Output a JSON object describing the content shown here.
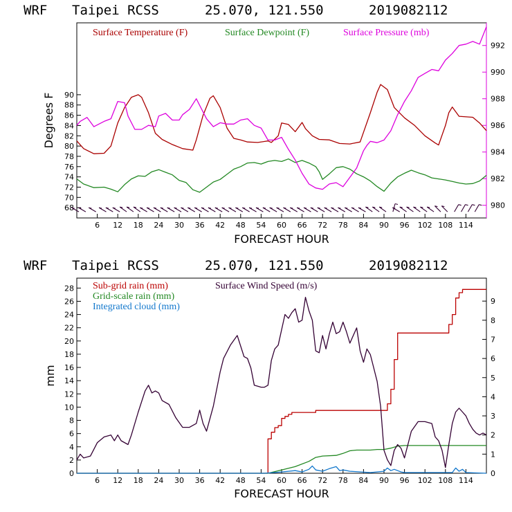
{
  "colors": {
    "temperature": "#aa0000",
    "dewpoint": "#228822",
    "pressure": "#dd00dd",
    "wind": "#330033",
    "subgrid": "#bb0000",
    "gridscale": "#228822",
    "cloud": "#1177cc"
  },
  "chart_data": [
    {
      "type": "line",
      "header": {
        "model": "WRF",
        "station": "Taipei RCSS",
        "coords": "25.070, 121.550",
        "init": "2019082112"
      },
      "xlabel": "FORECAST HOUR",
      "ylabel": "Degrees F",
      "xlim": [
        0,
        120
      ],
      "ylim": [
        66,
        104
      ],
      "y2lim": [
        979.05,
        993.7
      ],
      "x_ticks": [
        "6",
        "12",
        "18",
        "24",
        "30",
        "36",
        "42",
        "48",
        "54",
        "60",
        "66",
        "72",
        "78",
        "84",
        "90",
        "96",
        "102",
        "108",
        "114"
      ],
      "y_ticks": [
        "68",
        "70",
        "72",
        "74",
        "76",
        "78",
        "80",
        "82",
        "84",
        "86",
        "88",
        "90"
      ],
      "y2_ticks": [
        "980",
        "982",
        "984",
        "986",
        "988",
        "990",
        "992"
      ],
      "legend": [
        {
          "label": "Surface Temperature (F)",
          "color_key": "temperature"
        },
        {
          "label": "Surface Dewpoint (F)",
          "color_key": "dewpoint"
        },
        {
          "label": "Surface Pressure (mb)",
          "color_key": "pressure"
        }
      ],
      "series": [
        {
          "name": "Surface Temperature (F)",
          "axis": "left",
          "color_key": "temperature",
          "x": [
            0,
            2,
            5,
            8,
            10,
            12,
            14,
            16,
            18,
            19,
            21,
            23,
            25,
            28,
            31,
            34,
            35,
            37,
            39,
            40,
            42,
            44,
            46,
            48,
            50,
            53,
            56,
            57,
            59,
            60,
            62,
            64,
            66,
            67,
            69,
            71,
            74,
            77,
            80,
            83,
            86,
            88,
            89,
            91,
            93,
            96,
            99,
            102,
            105,
            106,
            108,
            109,
            110,
            112,
            116,
            118,
            120
          ],
          "y": [
            81,
            79.5,
            78.5,
            78.6,
            80,
            84.5,
            87.5,
            89.5,
            90,
            89.5,
            86.5,
            82.5,
            81.3,
            80.3,
            79.5,
            79.2,
            81.2,
            86,
            89.3,
            89.8,
            87.5,
            83.5,
            81.5,
            81.2,
            80.8,
            80.7,
            81,
            80.7,
            82,
            84.5,
            84.2,
            82.8,
            84.6,
            83.4,
            82,
            81.3,
            81.2,
            80.5,
            80.4,
            80.8,
            86.5,
            90.5,
            92,
            91,
            87.5,
            85.5,
            84,
            82,
            80.6,
            80.2,
            84,
            86.5,
            87.6,
            85.8,
            85.6,
            84.5,
            83
          ]
        },
        {
          "name": "Surface Dewpoint (F)",
          "axis": "left",
          "color_key": "dewpoint",
          "x": [
            0,
            2,
            5,
            8,
            10,
            12,
            14,
            16,
            18,
            20,
            22,
            24,
            26,
            28,
            30,
            32,
            34,
            36,
            38,
            40,
            42,
            44,
            46,
            48,
            50,
            52,
            54,
            56,
            58,
            60,
            62,
            64,
            66,
            68,
            70,
            71,
            72,
            74,
            76,
            78,
            80,
            82,
            84,
            86,
            88,
            90,
            92,
            94,
            96,
            98,
            100,
            102,
            104,
            106,
            108,
            110,
            112,
            114,
            116,
            118,
            120
          ],
          "y": [
            73.6,
            72.6,
            71.9,
            72,
            71.6,
            71.1,
            72.5,
            73.6,
            74.2,
            74.1,
            75,
            75.4,
            74.9,
            74.4,
            73.3,
            72.9,
            71.5,
            71,
            72,
            73,
            73.5,
            74.5,
            75.5,
            76,
            76.7,
            76.8,
            76.5,
            77,
            77.2,
            77,
            77.5,
            76.8,
            77.2,
            76.7,
            76,
            75,
            73.5,
            74.6,
            75.8,
            76,
            75.5,
            74.6,
            74,
            73.2,
            72.1,
            71.2,
            72.8,
            74,
            74.7,
            75.3,
            74.8,
            74.4,
            73.8,
            73.6,
            73.4,
            73.1,
            72.8,
            72.6,
            72.7,
            73.2,
            74.3
          ]
        },
        {
          "name": "Surface Pressure (mb)",
          "axis": "right",
          "color_key": "pressure",
          "x": [
            0,
            1,
            3,
            5,
            8,
            10,
            12,
            14,
            15,
            17,
            19,
            21,
            23,
            24,
            26,
            28,
            30,
            31,
            33,
            35,
            36,
            38,
            40,
            42,
            44,
            46,
            48,
            50,
            52,
            54,
            56,
            58,
            60,
            62,
            64,
            66,
            68,
            70,
            72,
            74,
            76,
            78,
            80,
            82,
            84,
            85,
            86,
            88,
            90,
            92,
            94,
            96,
            98,
            100,
            102,
            104,
            106,
            108,
            110,
            112,
            114,
            116,
            118,
            120
          ],
          "y": [
            986,
            986.3,
            986.6,
            985.9,
            986.3,
            986.5,
            987.8,
            987.7,
            986.7,
            985.7,
            985.7,
            986,
            985.9,
            986.7,
            986.9,
            986.4,
            986.4,
            986.8,
            987.2,
            988,
            987.5,
            986.5,
            985.9,
            986.2,
            986.1,
            986.1,
            986.4,
            986.5,
            986,
            985.8,
            984.9,
            984.9,
            985.1,
            984.2,
            983.4,
            982.4,
            981.6,
            981.3,
            981.2,
            981.6,
            981.7,
            981.4,
            982.1,
            982.8,
            984.1,
            984.5,
            984.8,
            984.7,
            984.9,
            985.6,
            986.8,
            987.8,
            988.6,
            989.6,
            989.9,
            990.2,
            990.1,
            990.9,
            991.4,
            992,
            992.1,
            992.3,
            992.1,
            993.4
          ]
        }
      ],
      "wind_barb_hours": [
        0,
        2,
        5,
        8,
        10,
        12,
        14,
        16,
        18,
        20,
        22,
        24,
        26,
        28,
        30,
        32,
        34,
        36,
        38,
        40,
        42,
        44,
        46,
        48,
        50,
        52,
        54,
        56,
        58,
        60,
        62,
        64,
        66,
        68,
        70,
        72,
        74,
        76,
        78,
        80,
        82,
        84,
        86,
        88,
        90,
        92,
        94,
        96,
        98,
        100,
        102,
        104,
        106,
        108,
        110,
        112,
        114,
        116
      ],
      "wind_barb_angles": [
        -60,
        -60,
        -60,
        -60,
        -60,
        -60,
        -55,
        -55,
        -55,
        -60,
        -60,
        -60,
        -60,
        -60,
        -60,
        -60,
        -60,
        -60,
        -60,
        -60,
        -60,
        -60,
        -60,
        -60,
        -60,
        -60,
        -60,
        -60,
        -60,
        -60,
        -60,
        -60,
        -60,
        -60,
        -60,
        -60,
        -60,
        -60,
        -60,
        -60,
        -60,
        -60,
        -55,
        -55,
        -55,
        15,
        -60,
        -55,
        -55,
        -55,
        -55,
        -55,
        -45,
        -45,
        30,
        30,
        30,
        30
      ]
    },
    {
      "type": "line",
      "header": {
        "model": "WRF",
        "station": "Taipei RCSS",
        "coords": "25.070, 121.550",
        "init": "2019082112"
      },
      "xlabel": "FORECAST HOUR",
      "ylabel": "mm",
      "xlim": [
        0,
        120
      ],
      "ylim": [
        0,
        29.5
      ],
      "y2lim": [
        0,
        10.2
      ],
      "x_ticks": [
        "6",
        "12",
        "18",
        "24",
        "30",
        "36",
        "42",
        "48",
        "54",
        "60",
        "66",
        "72",
        "78",
        "84",
        "90",
        "96",
        "102",
        "108",
        "114"
      ],
      "y_ticks": [
        "0",
        "2",
        "4",
        "6",
        "8",
        "10",
        "12",
        "14",
        "16",
        "18",
        "20",
        "22",
        "24",
        "26",
        "28"
      ],
      "y2_ticks": [
        "0",
        "1",
        "2",
        "3",
        "4",
        "5",
        "6",
        "7",
        "8",
        "9"
      ],
      "legend": [
        {
          "label": "Sub-grid rain (mm)",
          "color_key": "subgrid"
        },
        {
          "label": "Surface Wind Speed (m/s)",
          "color_key": "wind"
        },
        {
          "label": "Grid-scale rain (mm)",
          "color_key": "gridscale"
        },
        {
          "label": "Integrated cloud (mm)",
          "color_key": "cloud"
        }
      ],
      "series": [
        {
          "name": "Sub-grid rain (mm)",
          "axis": "left",
          "step": true,
          "color_key": "subgrid",
          "x": [
            0,
            55.5,
            56,
            57,
            58,
            59,
            60,
            61,
            62,
            63,
            70,
            90.5,
            91,
            92,
            93,
            94,
            108,
            109,
            110,
            111,
            112,
            113,
            118,
            120
          ],
          "y": [
            0,
            0,
            5.2,
            6.2,
            6.9,
            7.2,
            8.3,
            8.6,
            8.9,
            9.2,
            9.5,
            9.5,
            10.5,
            12.7,
            17.2,
            21.2,
            21.2,
            22.5,
            24,
            26.5,
            27.3,
            27.8,
            27.8,
            27.8
          ]
        },
        {
          "name": "Grid-scale rain (mm)",
          "axis": "left",
          "color_key": "gridscale",
          "x": [
            0,
            56,
            60,
            64,
            68,
            70,
            72,
            76,
            78,
            80,
            82,
            86,
            88,
            90,
            92,
            94,
            96,
            100,
            110,
            120
          ],
          "y": [
            0,
            0,
            0.5,
            1,
            1.8,
            2.4,
            2.6,
            2.7,
            3,
            3.4,
            3.5,
            3.5,
            3.6,
            3.6,
            3.8,
            4.1,
            4.2,
            4.2,
            4.2,
            4.2
          ]
        },
        {
          "name": "Integrated cloud (mm)",
          "axis": "left",
          "color_key": "cloud",
          "x": [
            0,
            55,
            60,
            64,
            66,
            68,
            69,
            70,
            72,
            74,
            76,
            77,
            78,
            80,
            86,
            90,
            91,
            92,
            93,
            95,
            96,
            100,
            110,
            111,
            112,
            113,
            114,
            120
          ],
          "y": [
            0,
            0,
            0.2,
            0.4,
            0.2,
            0.6,
            1.1,
            0.5,
            0.3,
            0.7,
            1,
            0.4,
            0.5,
            0.3,
            0.1,
            0.3,
            0.8,
            0.4,
            0.6,
            0.2,
            0.1,
            0.1,
            0.1,
            0.8,
            0.3,
            0.6,
            0.1,
            0
          ]
        },
        {
          "name": "Surface Wind Speed (m/s)",
          "axis": "right",
          "color_key": "wind",
          "x": [
            0,
            1,
            2,
            4,
            6,
            8,
            10,
            11,
            12,
            13,
            15,
            16,
            18,
            20,
            21,
            22,
            23,
            24,
            25,
            27,
            29,
            31,
            33,
            35,
            36,
            37,
            38,
            40,
            42,
            43,
            45,
            47,
            49,
            50,
            51,
            52,
            54,
            55,
            56,
            57,
            58,
            59,
            60,
            61,
            62,
            63,
            64,
            65,
            66,
            67,
            68,
            69,
            70,
            71,
            72,
            73,
            74,
            75,
            76,
            77,
            78,
            79,
            80,
            81,
            82,
            83,
            84,
            85,
            86,
            87,
            88,
            89,
            90,
            91,
            92,
            93,
            94,
            95,
            96,
            98,
            100,
            102,
            104,
            105,
            106,
            107,
            108,
            109,
            110,
            111,
            112,
            113,
            114,
            115,
            116,
            117,
            118,
            119,
            120
          ],
          "y": [
            0.7,
            1,
            0.8,
            0.9,
            1.6,
            1.9,
            2,
            1.7,
            2,
            1.7,
            1.5,
            2,
            3.2,
            4.3,
            4.6,
            4.2,
            4.3,
            4.2,
            3.8,
            3.6,
            2.9,
            2.4,
            2.4,
            2.6,
            3.3,
            2.6,
            2.2,
            3.5,
            5.3,
            6,
            6.7,
            7.2,
            6.1,
            6,
            5.5,
            4.6,
            4.5,
            4.5,
            4.6,
            5.9,
            6.5,
            6.7,
            7.5,
            8.3,
            8.1,
            8.4,
            8.6,
            7.9,
            8,
            9.2,
            8.5,
            8,
            6.4,
            6.3,
            7.2,
            6.5,
            7.3,
            7.9,
            7.3,
            7.4,
            7.9,
            7.4,
            6.8,
            7.2,
            7.6,
            6.4,
            5.8,
            6.5,
            6.2,
            5.5,
            4.8,
            3.5,
            1.2,
            0.7,
            0.4,
            1.2,
            1.5,
            1.3,
            0.8,
            2.2,
            2.7,
            2.7,
            2.6,
            1.9,
            1.7,
            1.2,
            0.3,
            1.5,
            2.6,
            3.2,
            3.4,
            3.2,
            3,
            2.6,
            2.3,
            2.1,
            2,
            2.1,
            2
          ]
        }
      ]
    }
  ]
}
